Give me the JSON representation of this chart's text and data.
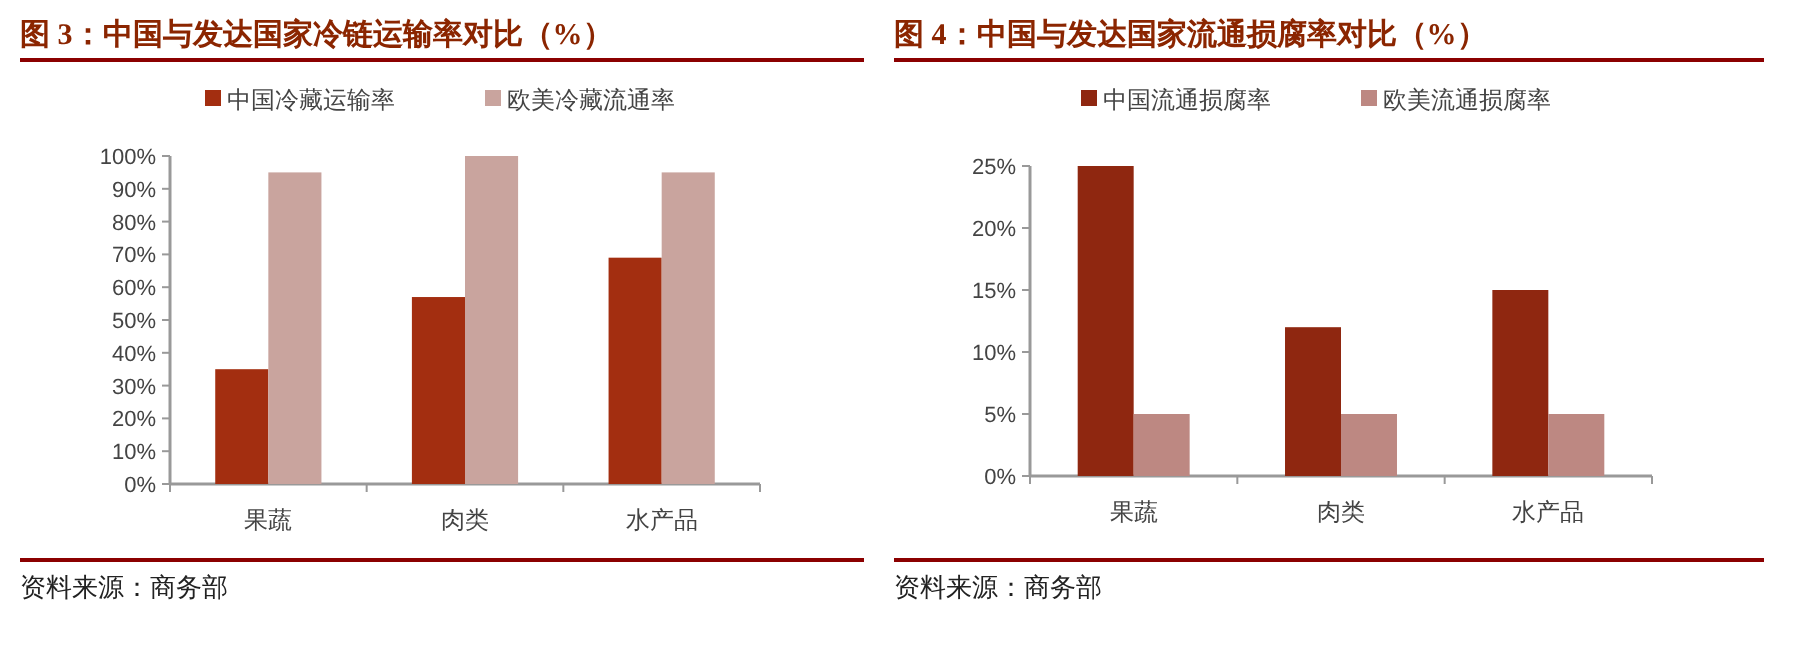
{
  "chart_data": [
    {
      "type": "bar",
      "title": "图 3：中国与发达国家冷链运输率对比（%）",
      "categories": [
        "果蔬",
        "肉类",
        "水产品"
      ],
      "series": [
        {
          "name": "中国冷藏运输率",
          "color": "#a32e10",
          "values": [
            35,
            57,
            69
          ]
        },
        {
          "name": "欧美冷藏流通率",
          "color": "#c9a49e",
          "values": [
            95,
            100,
            95
          ]
        }
      ],
      "ylim": [
        0,
        100
      ],
      "yticks": [
        {
          "value": 0,
          "label": "0%"
        },
        {
          "value": 10,
          "label": "10%"
        },
        {
          "value": 20,
          "label": "20%"
        },
        {
          "value": 30,
          "label": "30%"
        },
        {
          "value": 40,
          "label": "40%"
        },
        {
          "value": 50,
          "label": "50%"
        },
        {
          "value": 60,
          "label": "60%"
        },
        {
          "value": 70,
          "label": "70%"
        },
        {
          "value": 80,
          "label": "80%"
        },
        {
          "value": 90,
          "label": "90%"
        },
        {
          "value": 100,
          "label": "100%"
        }
      ],
      "legend": "top",
      "annotations": [
        "资料来源：商务部"
      ]
    },
    {
      "type": "bar",
      "title": "图 4：中国与发达国家流通损腐率对比（%）",
      "categories": [
        "果蔬",
        "肉类",
        "水产品"
      ],
      "series": [
        {
          "name": "中国流通损腐率",
          "color": "#8f2710",
          "values": [
            25,
            12,
            15
          ]
        },
        {
          "name": "欧美流通损腐率",
          "color": "#bd8882",
          "values": [
            5,
            5,
            5
          ]
        }
      ],
      "ylim": [
        0,
        25
      ],
      "yticks": [
        {
          "value": 0,
          "label": "0%"
        },
        {
          "value": 5,
          "label": "5%"
        },
        {
          "value": 10,
          "label": "10%"
        },
        {
          "value": 15,
          "label": "15%"
        },
        {
          "value": 20,
          "label": "20%"
        },
        {
          "value": 25,
          "label": "25%"
        }
      ],
      "legend": "top",
      "annotations": [
        "资料来源：商务部"
      ]
    }
  ]
}
